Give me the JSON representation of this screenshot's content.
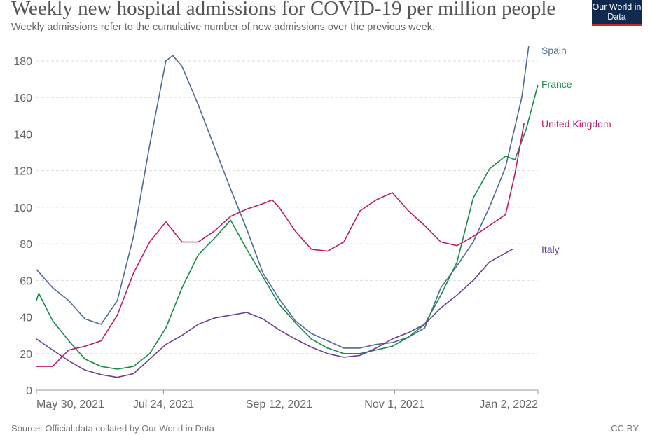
{
  "title": "Weekly new hospital admissions for COVID-19 per million people",
  "subtitle": "Weekly admissions refer to the cumulative number of new admissions over the previous week.",
  "logo": "Our World in Data",
  "source": "Source: Official data collated by Our World in Data",
  "license": "CC BY",
  "chart_data": {
    "type": "line",
    "title": "Weekly new hospital admissions for COVID-19 per million people",
    "xlabel": "",
    "ylabel": "",
    "xlim": [
      "2021-05-30",
      "2022-01-02"
    ],
    "ylim": [
      0,
      180
    ],
    "grid": "horizontal dashed",
    "legend": "inline-right",
    "x_ticks": [
      {
        "date": "2021-05-30",
        "label": "May 30, 2021"
      },
      {
        "date": "2021-07-24",
        "label": "Jul 24, 2021"
      },
      {
        "date": "2021-09-12",
        "label": "Sep 12, 2021"
      },
      {
        "date": "2021-11-01",
        "label": "Nov 1, 2021"
      },
      {
        "date": "2022-01-02",
        "label": "Jan 2, 2022"
      }
    ],
    "y_ticks": [
      0,
      20,
      40,
      60,
      80,
      100,
      120,
      140,
      160,
      180
    ],
    "series": [
      {
        "name": "Spain",
        "color": "#4f6a94",
        "points": [
          [
            "2021-05-30",
            66
          ],
          [
            "2021-06-06",
            56
          ],
          [
            "2021-06-13",
            49
          ],
          [
            "2021-06-20",
            39
          ],
          [
            "2021-06-27",
            36
          ],
          [
            "2021-07-04",
            49
          ],
          [
            "2021-07-11",
            84
          ],
          [
            "2021-07-18",
            134
          ],
          [
            "2021-07-25",
            180
          ],
          [
            "2021-07-28",
            183
          ],
          [
            "2021-08-01",
            177
          ],
          [
            "2021-08-08",
            156
          ],
          [
            "2021-08-15",
            133
          ],
          [
            "2021-08-22",
            110
          ],
          [
            "2021-08-29",
            88
          ],
          [
            "2021-09-05",
            64
          ],
          [
            "2021-09-12",
            50
          ],
          [
            "2021-09-19",
            38
          ],
          [
            "2021-09-26",
            31
          ],
          [
            "2021-10-03",
            27
          ],
          [
            "2021-10-10",
            23
          ],
          [
            "2021-10-17",
            23
          ],
          [
            "2021-10-24",
            25
          ],
          [
            "2021-10-31",
            26
          ],
          [
            "2021-11-07",
            29
          ],
          [
            "2021-11-14",
            34
          ],
          [
            "2021-11-21",
            56
          ],
          [
            "2021-11-28",
            68
          ],
          [
            "2021-12-05",
            81
          ],
          [
            "2021-12-12",
            100
          ],
          [
            "2021-12-19",
            122
          ],
          [
            "2021-12-26",
            160
          ],
          [
            "2021-12-29",
            188
          ]
        ]
      },
      {
        "name": "France",
        "color": "#178a48",
        "points": [
          [
            "2021-05-30",
            49
          ],
          [
            "2021-05-31",
            53
          ],
          [
            "2021-06-06",
            38
          ],
          [
            "2021-06-13",
            27
          ],
          [
            "2021-06-20",
            17
          ],
          [
            "2021-06-27",
            13
          ],
          [
            "2021-07-04",
            11.5
          ],
          [
            "2021-07-11",
            13
          ],
          [
            "2021-07-18",
            20
          ],
          [
            "2021-07-25",
            34
          ],
          [
            "2021-08-01",
            56
          ],
          [
            "2021-08-08",
            74
          ],
          [
            "2021-08-15",
            83
          ],
          [
            "2021-08-22",
            93
          ],
          [
            "2021-08-29",
            77
          ],
          [
            "2021-09-05",
            62
          ],
          [
            "2021-09-12",
            47
          ],
          [
            "2021-09-19",
            37
          ],
          [
            "2021-09-26",
            28
          ],
          [
            "2021-10-03",
            23
          ],
          [
            "2021-10-10",
            20
          ],
          [
            "2021-10-17",
            20
          ],
          [
            "2021-10-24",
            22
          ],
          [
            "2021-10-31",
            24
          ],
          [
            "2021-11-07",
            29
          ],
          [
            "2021-11-14",
            36
          ],
          [
            "2021-11-21",
            52
          ],
          [
            "2021-11-28",
            70
          ],
          [
            "2021-12-05",
            105
          ],
          [
            "2021-12-12",
            121
          ],
          [
            "2021-12-19",
            128
          ],
          [
            "2021-12-23",
            126
          ],
          [
            "2021-12-28",
            143
          ],
          [
            "2022-01-02",
            167
          ]
        ]
      },
      {
        "name": "United Kingdom",
        "color": "#c0196b",
        "points": [
          [
            "2021-05-30",
            13
          ],
          [
            "2021-06-06",
            13
          ],
          [
            "2021-06-13",
            22
          ],
          [
            "2021-06-20",
            24
          ],
          [
            "2021-06-27",
            27
          ],
          [
            "2021-07-04",
            41
          ],
          [
            "2021-07-11",
            64
          ],
          [
            "2021-07-18",
            81
          ],
          [
            "2021-07-25",
            92
          ],
          [
            "2021-08-01",
            81
          ],
          [
            "2021-08-08",
            81
          ],
          [
            "2021-08-15",
            87
          ],
          [
            "2021-08-22",
            95
          ],
          [
            "2021-08-29",
            99
          ],
          [
            "2021-09-05",
            102
          ],
          [
            "2021-09-09",
            104
          ],
          [
            "2021-09-12",
            100
          ],
          [
            "2021-09-19",
            87
          ],
          [
            "2021-09-26",
            77
          ],
          [
            "2021-10-03",
            76
          ],
          [
            "2021-10-10",
            81
          ],
          [
            "2021-10-17",
            98
          ],
          [
            "2021-10-24",
            104
          ],
          [
            "2021-10-31",
            108
          ],
          [
            "2021-11-07",
            98
          ],
          [
            "2021-11-14",
            90
          ],
          [
            "2021-11-21",
            81
          ],
          [
            "2021-11-28",
            79
          ],
          [
            "2021-12-05",
            84
          ],
          [
            "2021-12-12",
            90
          ],
          [
            "2021-12-19",
            96
          ],
          [
            "2021-12-23",
            118
          ],
          [
            "2021-12-27",
            146
          ]
        ]
      },
      {
        "name": "Italy",
        "color": "#6d3e91",
        "points": [
          [
            "2021-05-30",
            28
          ],
          [
            "2021-06-06",
            22
          ],
          [
            "2021-06-13",
            16
          ],
          [
            "2021-06-20",
            11
          ],
          [
            "2021-06-27",
            8.5
          ],
          [
            "2021-07-04",
            7
          ],
          [
            "2021-07-11",
            9
          ],
          [
            "2021-07-18",
            17
          ],
          [
            "2021-07-25",
            25
          ],
          [
            "2021-08-01",
            30
          ],
          [
            "2021-08-08",
            36
          ],
          [
            "2021-08-15",
            39.5
          ],
          [
            "2021-08-22",
            41
          ],
          [
            "2021-08-29",
            42.5
          ],
          [
            "2021-09-05",
            39
          ],
          [
            "2021-09-12",
            33
          ],
          [
            "2021-09-19",
            28
          ],
          [
            "2021-09-26",
            23.5
          ],
          [
            "2021-10-03",
            20
          ],
          [
            "2021-10-10",
            18
          ],
          [
            "2021-10-17",
            19
          ],
          [
            "2021-10-24",
            23
          ],
          [
            "2021-10-31",
            28
          ],
          [
            "2021-11-07",
            31.5
          ],
          [
            "2021-11-14",
            36
          ],
          [
            "2021-11-21",
            45
          ],
          [
            "2021-11-28",
            52
          ],
          [
            "2021-12-05",
            60
          ],
          [
            "2021-12-12",
            70
          ],
          [
            "2021-12-19",
            75
          ],
          [
            "2021-12-22",
            77
          ]
        ]
      }
    ]
  }
}
